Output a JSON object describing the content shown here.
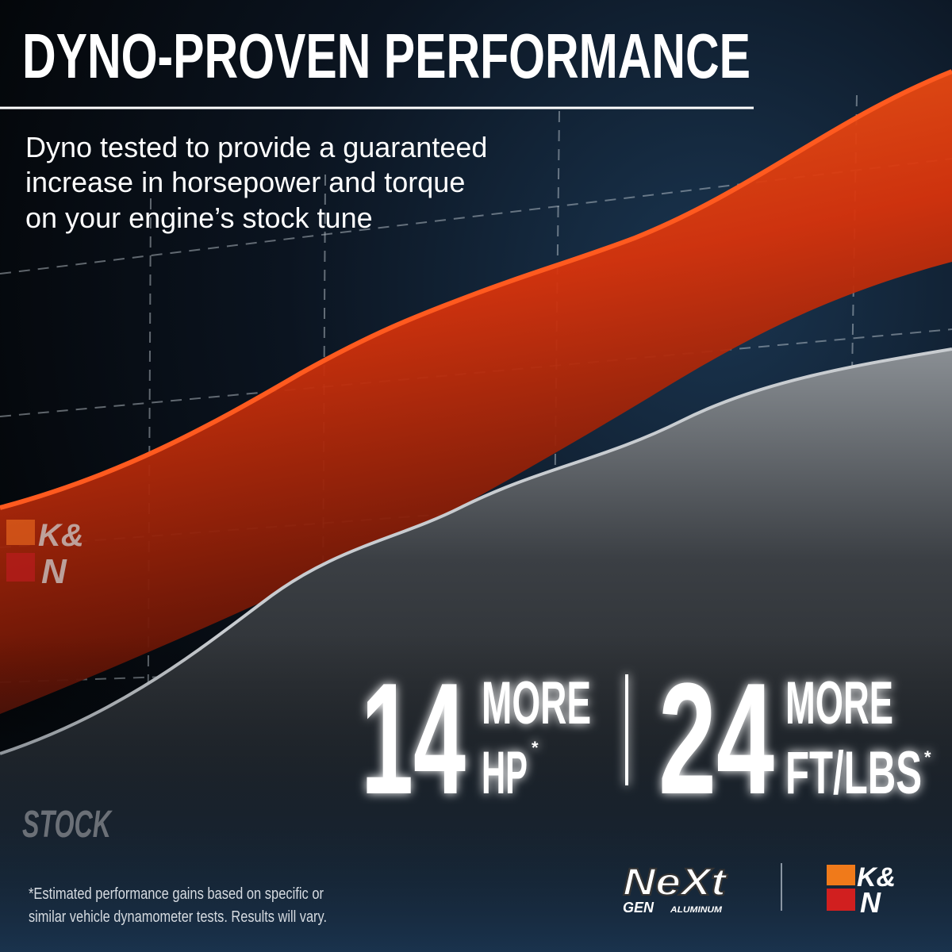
{
  "header": {
    "title": "DYNO-PROVEN PERFORMANCE",
    "subtitle_lines": [
      "Dyno tested to provide a guaranteed",
      "increase in horsepower and torque",
      "on your engine’s stock tune"
    ]
  },
  "chart_labels": {
    "brand": [
      "K&",
      "N"
    ],
    "stock": "STOCK"
  },
  "stats": [
    {
      "number": "14",
      "word": "MORE",
      "unit": "HP",
      "mark": "*"
    },
    {
      "number": "24",
      "word": "MORE",
      "unit": "FT/LBS",
      "mark": "*"
    }
  ],
  "footnote": [
    "*Estimated performance gains based on specific or",
    "similar vehicle dynamometer tests. Results will vary."
  ],
  "logos": {
    "next_gen": [
      "NeXt",
      "GEN",
      "ALUMINUM"
    ],
    "brand": [
      "K&",
      "N"
    ]
  }
}
